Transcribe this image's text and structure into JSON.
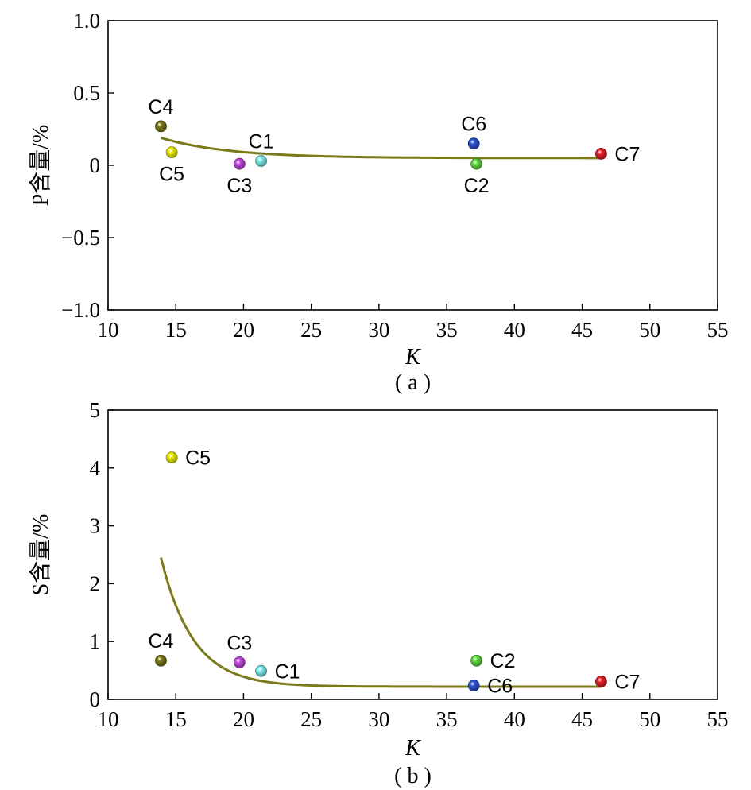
{
  "chart_data": [
    {
      "type": "scatter",
      "panel_caption": "( a )",
      "xlabel": "K",
      "ylabel": "P含量/%",
      "xlim": [
        10,
        55
      ],
      "ylim": [
        -1.0,
        1.0
      ],
      "x_ticks": [
        10,
        15,
        20,
        25,
        30,
        35,
        40,
        45,
        50,
        55
      ],
      "x_tick_labels": [
        "10",
        "15",
        "20",
        "25",
        "30",
        "35",
        "40",
        "45",
        "50",
        "55"
      ],
      "y_ticks": [
        -1.0,
        -0.5,
        0,
        0.5,
        1.0
      ],
      "y_tick_labels": [
        "−1.0",
        "−0.5",
        "0",
        "0.5",
        "1.0"
      ],
      "grid": false,
      "points": [
        {
          "label": "C4",
          "x": 13.9,
          "y": 0.27,
          "color": "#7a7a1a",
          "label_pos": "above"
        },
        {
          "label": "C5",
          "x": 14.7,
          "y": 0.09,
          "color": "#f2f20a",
          "label_pos": "below"
        },
        {
          "label": "C3",
          "x": 19.7,
          "y": 0.01,
          "color": "#c84ae6",
          "label_pos": "below"
        },
        {
          "label": "C1",
          "x": 21.3,
          "y": 0.03,
          "color": "#7ff0ee",
          "label_pos": "above"
        },
        {
          "label": "C6",
          "x": 37.0,
          "y": 0.15,
          "color": "#2b55d6",
          "label_pos": "above"
        },
        {
          "label": "C2",
          "x": 37.2,
          "y": 0.01,
          "color": "#62e043",
          "label_pos": "below"
        },
        {
          "label": "C7",
          "x": 46.4,
          "y": 0.08,
          "color": "#e8212a",
          "label_pos": "right"
        }
      ],
      "fit_curve": {
        "type": "exponential",
        "x_range": [
          13.9,
          46.4
        ],
        "asymptote": 0.05,
        "amplitude": 0.14,
        "decay_rate": 0.2,
        "x_start": 13.9,
        "color": "#7a7a1a"
      }
    },
    {
      "type": "scatter",
      "panel_caption": "( b )",
      "xlabel": "K",
      "ylabel": "S含量/%",
      "xlim": [
        10,
        55
      ],
      "ylim": [
        0,
        5
      ],
      "x_ticks": [
        10,
        15,
        20,
        25,
        30,
        35,
        40,
        45,
        50,
        55
      ],
      "x_tick_labels": [
        "10",
        "15",
        "20",
        "25",
        "30",
        "35",
        "40",
        "45",
        "50",
        "55"
      ],
      "y_ticks": [
        0,
        1,
        2,
        3,
        4,
        5
      ],
      "y_tick_labels": [
        "0",
        "1",
        "2",
        "3",
        "4",
        "5"
      ],
      "grid": false,
      "points": [
        {
          "label": "C5",
          "x": 14.7,
          "y": 4.18,
          "color": "#f2f20a",
          "label_pos": "right"
        },
        {
          "label": "C4",
          "x": 13.9,
          "y": 0.67,
          "color": "#7a7a1a",
          "label_pos": "above"
        },
        {
          "label": "C3",
          "x": 19.7,
          "y": 0.64,
          "color": "#c84ae6",
          "label_pos": "above"
        },
        {
          "label": "C1",
          "x": 21.3,
          "y": 0.49,
          "color": "#7ff0ee",
          "label_pos": "right"
        },
        {
          "label": "C2",
          "x": 37.2,
          "y": 0.67,
          "color": "#62e043",
          "label_pos": "right"
        },
        {
          "label": "C6",
          "x": 37.0,
          "y": 0.24,
          "color": "#2b55d6",
          "label_pos": "right"
        },
        {
          "label": "C7",
          "x": 46.4,
          "y": 0.31,
          "color": "#e8212a",
          "label_pos": "right"
        }
      ],
      "fit_curve": {
        "type": "exponential",
        "x_range": [
          13.9,
          46.4
        ],
        "asymptote": 0.22,
        "amplitude": 2.23,
        "decay_rate": 0.42,
        "x_start": 13.9,
        "color": "#7a7a1a"
      }
    }
  ]
}
